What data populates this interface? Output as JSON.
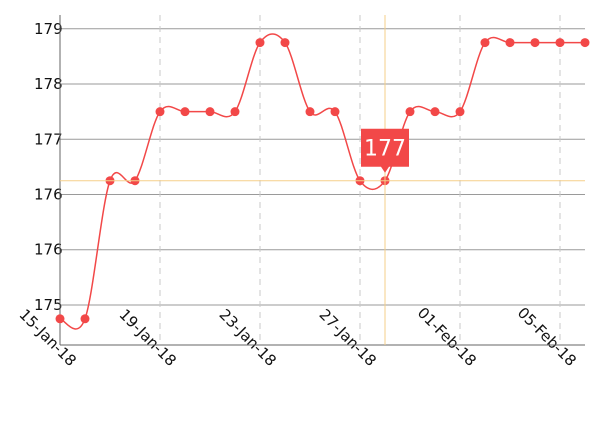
{
  "chart_data": {
    "type": "line",
    "categories": [
      "15-Jan-18",
      null,
      null,
      null,
      "19-Jan-18",
      null,
      null,
      null,
      "23-Jan-18",
      null,
      null,
      null,
      "27-Jan-18",
      null,
      null,
      null,
      "01-Feb-18",
      null,
      null,
      null,
      "05-Feb-18",
      null
    ],
    "series": [
      {
        "color": "#f24848",
        "values": [
          174.6,
          174.6,
          176.6,
          176.6,
          177.6,
          177.6,
          177.6,
          177.6,
          178.6,
          178.6,
          177.6,
          177.6,
          176.6,
          176.6,
          177.6,
          177.6,
          177.6,
          178.6,
          178.6,
          178.6,
          178.6,
          178.6
        ]
      }
    ],
    "ylim": [
      174.22,
      179.0
    ],
    "yticks": [
      {
        "value": 178.8,
        "label": "179"
      },
      {
        "value": 178.0,
        "label": "178"
      },
      {
        "value": 177.2,
        "label": "177"
      },
      {
        "value": 176.4,
        "label": "176"
      },
      {
        "value": 175.6,
        "label": "176"
      },
      {
        "value": 174.8,
        "label": "175"
      }
    ],
    "grid": true,
    "tooltip": {
      "index": 13,
      "label": "177",
      "color": "#f24848",
      "crosshair_color": "#f5cf8a"
    }
  }
}
